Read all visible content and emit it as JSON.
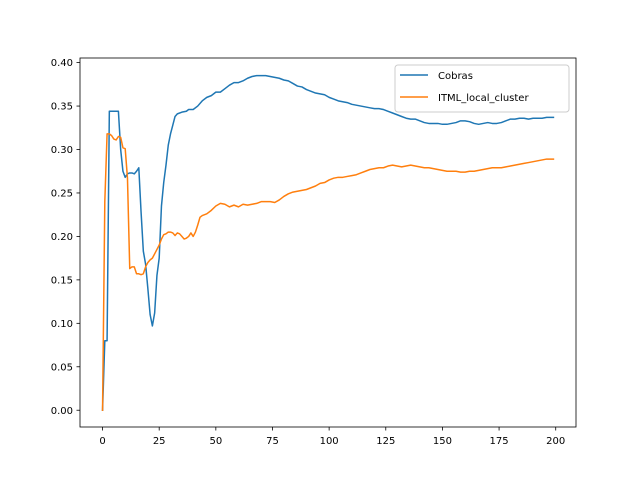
{
  "chart_data": {
    "type": "line",
    "title": "",
    "xlabel": "",
    "ylabel": "",
    "xlim": [
      -9.95,
      208.95
    ],
    "ylim": [
      -0.0193,
      0.4053
    ],
    "xticks": [
      0,
      25,
      50,
      75,
      100,
      125,
      150,
      175,
      200
    ],
    "yticks": [
      0.0,
      0.05,
      0.1,
      0.15,
      0.2,
      0.25,
      0.3,
      0.35,
      0.4
    ],
    "xtick_labels": [
      "0",
      "25",
      "50",
      "75",
      "100",
      "125",
      "150",
      "175",
      "200"
    ],
    "ytick_labels": [
      "0.00",
      "0.05",
      "0.10",
      "0.15",
      "0.20",
      "0.25",
      "0.30",
      "0.35",
      "0.40"
    ],
    "grid": false,
    "legend_position": "upper right",
    "series": [
      {
        "name": "Cobras",
        "color": "#1f77b4",
        "points": [
          [
            0,
            0.0
          ],
          [
            1,
            0.08
          ],
          [
            2,
            0.08
          ],
          [
            3,
            0.344
          ],
          [
            4,
            0.344
          ],
          [
            5,
            0.344
          ],
          [
            6,
            0.344
          ],
          [
            7,
            0.344
          ],
          [
            8,
            0.3
          ],
          [
            9,
            0.275
          ],
          [
            10,
            0.268
          ],
          [
            11,
            0.272
          ],
          [
            12,
            0.273
          ],
          [
            13,
            0.273
          ],
          [
            14,
            0.272
          ],
          [
            15,
            0.275
          ],
          [
            16,
            0.279
          ],
          [
            17,
            0.228
          ],
          [
            18,
            0.183
          ],
          [
            19,
            0.168
          ],
          [
            20,
            0.14
          ],
          [
            21,
            0.11
          ],
          [
            22,
            0.097
          ],
          [
            23,
            0.112
          ],
          [
            24,
            0.155
          ],
          [
            25,
            0.175
          ],
          [
            26,
            0.235
          ],
          [
            27,
            0.262
          ],
          [
            28,
            0.282
          ],
          [
            29,
            0.305
          ],
          [
            30,
            0.318
          ],
          [
            31,
            0.328
          ],
          [
            32,
            0.338
          ],
          [
            33,
            0.341
          ],
          [
            35,
            0.343
          ],
          [
            37,
            0.344
          ],
          [
            38,
            0.346
          ],
          [
            40,
            0.346
          ],
          [
            42,
            0.35
          ],
          [
            44,
            0.356
          ],
          [
            46,
            0.36
          ],
          [
            48,
            0.362
          ],
          [
            50,
            0.366
          ],
          [
            52,
            0.366
          ],
          [
            54,
            0.37
          ],
          [
            56,
            0.374
          ],
          [
            58,
            0.377
          ],
          [
            60,
            0.377
          ],
          [
            62,
            0.379
          ],
          [
            64,
            0.382
          ],
          [
            66,
            0.384
          ],
          [
            68,
            0.385
          ],
          [
            70,
            0.385
          ],
          [
            72,
            0.385
          ],
          [
            74,
            0.384
          ],
          [
            76,
            0.383
          ],
          [
            78,
            0.382
          ],
          [
            80,
            0.38
          ],
          [
            82,
            0.379
          ],
          [
            84,
            0.376
          ],
          [
            86,
            0.373
          ],
          [
            88,
            0.372
          ],
          [
            90,
            0.369
          ],
          [
            92,
            0.367
          ],
          [
            94,
            0.365
          ],
          [
            96,
            0.364
          ],
          [
            98,
            0.363
          ],
          [
            100,
            0.36
          ],
          [
            102,
            0.358
          ],
          [
            104,
            0.356
          ],
          [
            106,
            0.355
          ],
          [
            108,
            0.354
          ],
          [
            110,
            0.352
          ],
          [
            112,
            0.351
          ],
          [
            114,
            0.35
          ],
          [
            116,
            0.349
          ],
          [
            118,
            0.348
          ],
          [
            120,
            0.347
          ],
          [
            122,
            0.347
          ],
          [
            124,
            0.346
          ],
          [
            126,
            0.344
          ],
          [
            128,
            0.342
          ],
          [
            130,
            0.34
          ],
          [
            132,
            0.338
          ],
          [
            134,
            0.336
          ],
          [
            136,
            0.335
          ],
          [
            138,
            0.335
          ],
          [
            140,
            0.333
          ],
          [
            142,
            0.331
          ],
          [
            144,
            0.33
          ],
          [
            146,
            0.33
          ],
          [
            148,
            0.33
          ],
          [
            150,
            0.329
          ],
          [
            152,
            0.329
          ],
          [
            154,
            0.33
          ],
          [
            156,
            0.331
          ],
          [
            158,
            0.333
          ],
          [
            160,
            0.333
          ],
          [
            162,
            0.332
          ],
          [
            164,
            0.33
          ],
          [
            166,
            0.329
          ],
          [
            168,
            0.33
          ],
          [
            170,
            0.331
          ],
          [
            172,
            0.33
          ],
          [
            174,
            0.33
          ],
          [
            176,
            0.331
          ],
          [
            178,
            0.333
          ],
          [
            180,
            0.335
          ],
          [
            182,
            0.335
          ],
          [
            184,
            0.336
          ],
          [
            186,
            0.336
          ],
          [
            188,
            0.335
          ],
          [
            190,
            0.336
          ],
          [
            192,
            0.336
          ],
          [
            194,
            0.336
          ],
          [
            196,
            0.337
          ],
          [
            198,
            0.337
          ],
          [
            199,
            0.337
          ]
        ]
      },
      {
        "name": "ITML_local_cluster",
        "color": "#ff7f0e",
        "points": [
          [
            0,
            0.0
          ],
          [
            1,
            0.24
          ],
          [
            2,
            0.318
          ],
          [
            3,
            0.318
          ],
          [
            4,
            0.316
          ],
          [
            5,
            0.312
          ],
          [
            6,
            0.311
          ],
          [
            7,
            0.315
          ],
          [
            8,
            0.314
          ],
          [
            9,
            0.302
          ],
          [
            10,
            0.301
          ],
          [
            11,
            0.267
          ],
          [
            12,
            0.163
          ],
          [
            13,
            0.165
          ],
          [
            14,
            0.165
          ],
          [
            15,
            0.157
          ],
          [
            16,
            0.157
          ],
          [
            17,
            0.156
          ],
          [
            18,
            0.157
          ],
          [
            19,
            0.165
          ],
          [
            20,
            0.17
          ],
          [
            21,
            0.173
          ],
          [
            22,
            0.175
          ],
          [
            23,
            0.18
          ],
          [
            24,
            0.185
          ],
          [
            25,
            0.19
          ],
          [
            26,
            0.197
          ],
          [
            27,
            0.202
          ],
          [
            28,
            0.203
          ],
          [
            29,
            0.205
          ],
          [
            30,
            0.205
          ],
          [
            31,
            0.204
          ],
          [
            32,
            0.201
          ],
          [
            33,
            0.204
          ],
          [
            34,
            0.203
          ],
          [
            35,
            0.2
          ],
          [
            36,
            0.197
          ],
          [
            37,
            0.198
          ],
          [
            38,
            0.2
          ],
          [
            39,
            0.204
          ],
          [
            40,
            0.2
          ],
          [
            41,
            0.205
          ],
          [
            42,
            0.213
          ],
          [
            43,
            0.222
          ],
          [
            44,
            0.224
          ],
          [
            46,
            0.226
          ],
          [
            48,
            0.23
          ],
          [
            50,
            0.235
          ],
          [
            52,
            0.238
          ],
          [
            54,
            0.237
          ],
          [
            56,
            0.234
          ],
          [
            58,
            0.236
          ],
          [
            60,
            0.234
          ],
          [
            62,
            0.237
          ],
          [
            64,
            0.236
          ],
          [
            66,
            0.237
          ],
          [
            68,
            0.238
          ],
          [
            70,
            0.24
          ],
          [
            72,
            0.24
          ],
          [
            74,
            0.24
          ],
          [
            76,
            0.239
          ],
          [
            78,
            0.242
          ],
          [
            80,
            0.246
          ],
          [
            82,
            0.249
          ],
          [
            84,
            0.251
          ],
          [
            86,
            0.252
          ],
          [
            88,
            0.253
          ],
          [
            90,
            0.254
          ],
          [
            92,
            0.256
          ],
          [
            94,
            0.258
          ],
          [
            96,
            0.261
          ],
          [
            98,
            0.262
          ],
          [
            100,
            0.265
          ],
          [
            102,
            0.267
          ],
          [
            104,
            0.268
          ],
          [
            106,
            0.268
          ],
          [
            108,
            0.269
          ],
          [
            110,
            0.27
          ],
          [
            112,
            0.271
          ],
          [
            114,
            0.273
          ],
          [
            116,
            0.275
          ],
          [
            118,
            0.277
          ],
          [
            120,
            0.278
          ],
          [
            122,
            0.279
          ],
          [
            124,
            0.279
          ],
          [
            126,
            0.281
          ],
          [
            128,
            0.282
          ],
          [
            130,
            0.281
          ],
          [
            132,
            0.28
          ],
          [
            134,
            0.281
          ],
          [
            136,
            0.282
          ],
          [
            138,
            0.281
          ],
          [
            140,
            0.28
          ],
          [
            142,
            0.279
          ],
          [
            144,
            0.279
          ],
          [
            146,
            0.278
          ],
          [
            148,
            0.277
          ],
          [
            150,
            0.276
          ],
          [
            152,
            0.275
          ],
          [
            154,
            0.275
          ],
          [
            156,
            0.275
          ],
          [
            158,
            0.274
          ],
          [
            160,
            0.274
          ],
          [
            162,
            0.275
          ],
          [
            164,
            0.275
          ],
          [
            166,
            0.276
          ],
          [
            168,
            0.277
          ],
          [
            170,
            0.278
          ],
          [
            172,
            0.279
          ],
          [
            174,
            0.279
          ],
          [
            176,
            0.279
          ],
          [
            178,
            0.28
          ],
          [
            180,
            0.281
          ],
          [
            182,
            0.282
          ],
          [
            184,
            0.283
          ],
          [
            186,
            0.284
          ],
          [
            188,
            0.285
          ],
          [
            190,
            0.286
          ],
          [
            192,
            0.287
          ],
          [
            194,
            0.288
          ],
          [
            196,
            0.289
          ],
          [
            198,
            0.289
          ],
          [
            199,
            0.289
          ]
        ]
      }
    ]
  }
}
